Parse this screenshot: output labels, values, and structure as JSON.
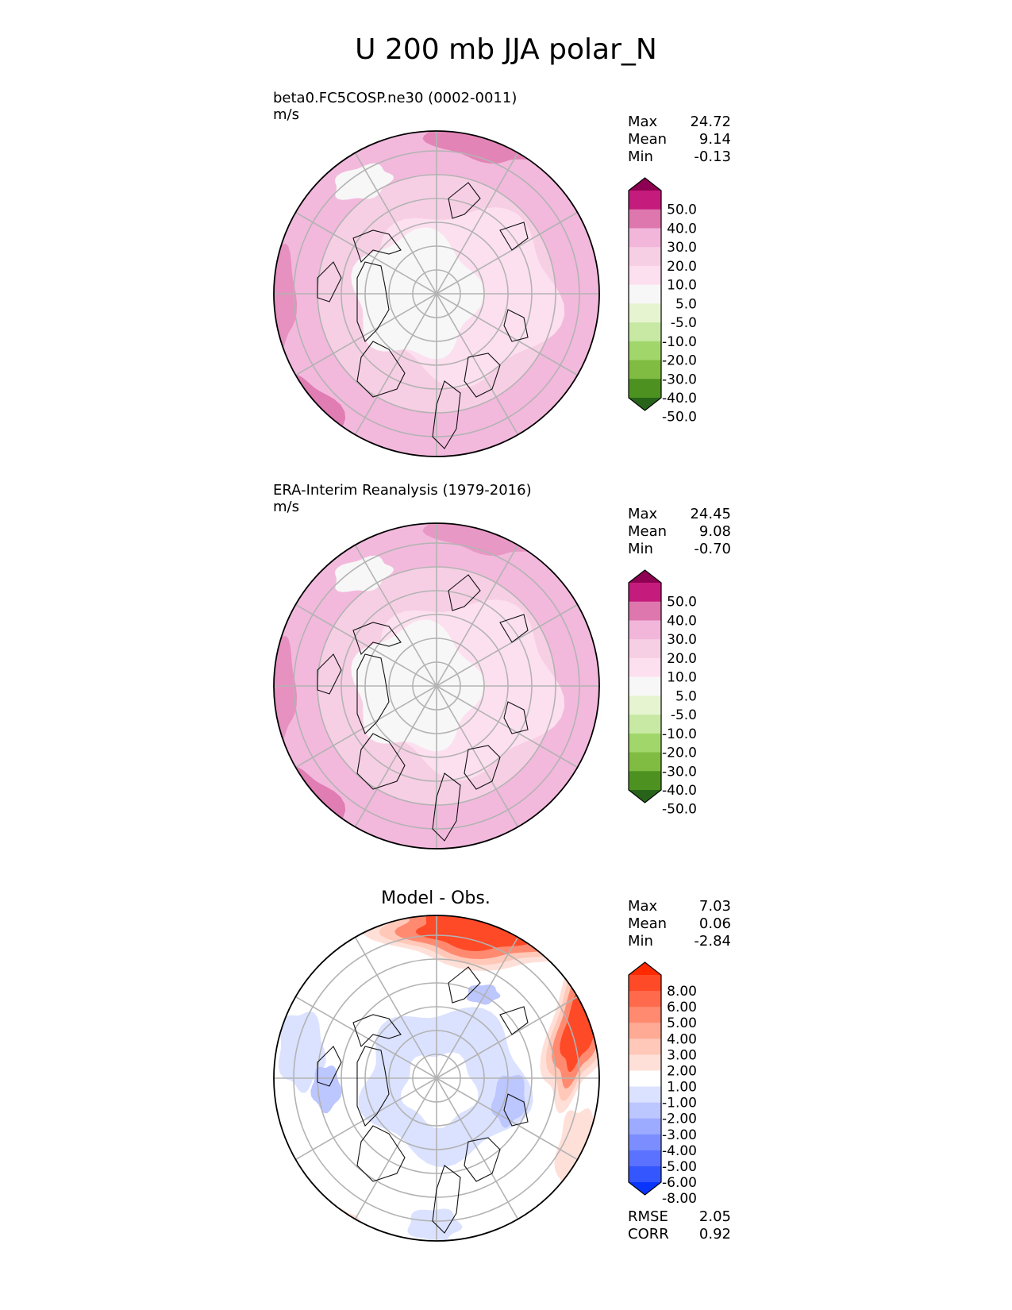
{
  "title": "U 200 mb JJA polar_N",
  "panels": [
    {
      "name": "beta0.FC5COSP.ne30 (0002-0011)",
      "units": "m/s",
      "subtitle": "",
      "stats": [
        [
          "Max",
          "24.72"
        ],
        [
          "Mean",
          "9.14"
        ],
        [
          "Min",
          "-0.13"
        ]
      ],
      "colorbar": {
        "labels": [
          "50.0",
          "40.0",
          "30.0",
          "20.0",
          "10.0",
          "5.0",
          "-5.0",
          "-10.0",
          "-20.0",
          "-30.0",
          "-40.0",
          "-50.0"
        ],
        "colors": [
          "#8e0152",
          "#c51b7d",
          "#de77ae",
          "#f1b6da",
          "#f7cfe4",
          "#fde0ef",
          "#f7f7f7",
          "#e6f5d0",
          "#c7e9a4",
          "#a1d76a",
          "#7fbc41",
          "#4d9221",
          "#276419"
        ]
      }
    },
    {
      "name": "ERA-Interim Reanalysis (1979-2016)",
      "units": "m/s",
      "subtitle": "",
      "stats": [
        [
          "Max",
          "24.45"
        ],
        [
          "Mean",
          "9.08"
        ],
        [
          "Min",
          "-0.70"
        ]
      ],
      "colorbar": {
        "labels": [
          "50.0",
          "40.0",
          "30.0",
          "20.0",
          "10.0",
          "5.0",
          "-5.0",
          "-10.0",
          "-20.0",
          "-30.0",
          "-40.0",
          "-50.0"
        ],
        "colors": [
          "#8e0152",
          "#c51b7d",
          "#de77ae",
          "#f1b6da",
          "#f7cfe4",
          "#fde0ef",
          "#f7f7f7",
          "#e6f5d0",
          "#c7e9a4",
          "#a1d76a",
          "#7fbc41",
          "#4d9221",
          "#276419"
        ]
      }
    },
    {
      "name": "",
      "units": "",
      "subtitle": "Model - Obs.",
      "stats": [
        [
          "Max",
          "7.03"
        ],
        [
          "Mean",
          "0.06"
        ],
        [
          "Min",
          "-2.84"
        ]
      ],
      "stats_bottom": [
        [
          "RMSE",
          "2.05"
        ],
        [
          "CORR",
          "0.92"
        ]
      ],
      "colorbar": {
        "labels": [
          "8.00",
          "6.00",
          "5.00",
          "4.00",
          "3.00",
          "2.00",
          "1.00",
          "-1.00",
          "-2.00",
          "-3.00",
          "-4.00",
          "-5.00",
          "-6.00",
          "-8.00"
        ],
        "colors": [
          "#ff2a00",
          "#ff4a28",
          "#ff6a4c",
          "#ff8a70",
          "#ffaa94",
          "#ffc8b8",
          "#ffe0d8",
          "#ffffff",
          "#dbe2ff",
          "#bcc6ff",
          "#9caaff",
          "#7c8eff",
          "#5a72ff",
          "#3456ff",
          "#0a35ff"
        ]
      }
    }
  ],
  "chart_data": [
    {
      "type": "heatmap",
      "title": "beta0.FC5COSP.ne30 (0002-0011)",
      "units": "m/s",
      "projection": "polar_N",
      "stats": {
        "max": 24.72,
        "mean": 9.14,
        "min": -0.13
      },
      "levels": [
        -50,
        -40,
        -30,
        -20,
        -10,
        -5,
        5,
        10,
        20,
        30,
        40,
        50
      ]
    },
    {
      "type": "heatmap",
      "title": "ERA-Interim Reanalysis (1979-2016)",
      "units": "m/s",
      "projection": "polar_N",
      "stats": {
        "max": 24.45,
        "mean": 9.08,
        "min": -0.7
      },
      "levels": [
        -50,
        -40,
        -30,
        -20,
        -10,
        -5,
        5,
        10,
        20,
        30,
        40,
        50
      ]
    },
    {
      "type": "heatmap",
      "title": "Model - Obs.",
      "projection": "polar_N",
      "stats": {
        "max": 7.03,
        "mean": 0.06,
        "min": -2.84,
        "rmse": 2.05,
        "corr": 0.92
      },
      "levels": [
        -8,
        -6,
        -5,
        -4,
        -3,
        -2,
        -1,
        1,
        2,
        3,
        4,
        5,
        6,
        8
      ]
    }
  ]
}
